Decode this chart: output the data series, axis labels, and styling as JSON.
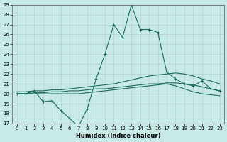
{
  "xlabel": "Humidex (Indice chaleur)",
  "x": [
    0,
    1,
    2,
    3,
    4,
    5,
    6,
    7,
    8,
    9,
    10,
    11,
    12,
    13,
    14,
    15,
    16,
    17,
    18,
    19,
    20,
    21,
    22,
    23
  ],
  "line1": [
    20.0,
    20.0,
    20.3,
    19.2,
    19.3,
    18.3,
    17.5,
    16.7,
    18.5,
    21.5,
    24.0,
    27.0,
    25.7,
    29.0,
    26.5,
    26.5,
    26.2,
    22.2,
    21.5,
    21.0,
    20.8,
    21.3,
    20.5,
    20.3
  ],
  "line2": [
    20.2,
    20.2,
    20.3,
    20.3,
    20.4,
    20.4,
    20.5,
    20.6,
    20.7,
    20.8,
    20.9,
    21.0,
    21.2,
    21.4,
    21.6,
    21.8,
    21.9,
    22.0,
    22.1,
    22.0,
    21.8,
    21.5,
    21.3,
    21.0
  ],
  "line3": [
    20.0,
    20.0,
    20.1,
    20.1,
    20.2,
    20.2,
    20.3,
    20.3,
    20.4,
    20.5,
    20.5,
    20.6,
    20.7,
    20.8,
    20.9,
    21.0,
    21.0,
    21.1,
    21.1,
    21.0,
    20.9,
    20.7,
    20.5,
    20.3
  ],
  "line4": [
    20.0,
    20.0,
    20.0,
    20.0,
    20.0,
    20.0,
    20.0,
    20.0,
    20.1,
    20.2,
    20.3,
    20.4,
    20.5,
    20.6,
    20.7,
    20.8,
    20.9,
    21.0,
    20.8,
    20.5,
    20.2,
    20.0,
    19.9,
    19.8
  ],
  "bg_color": "#c8eae6",
  "grid_color": "#b0c8c4",
  "line_color": "#1a6b5a",
  "ylim": [
    17,
    29
  ],
  "yticks": [
    17,
    18,
    19,
    20,
    21,
    22,
    23,
    24,
    25,
    26,
    27,
    28,
    29
  ],
  "xticks": [
    0,
    1,
    2,
    3,
    4,
    5,
    6,
    7,
    8,
    9,
    10,
    11,
    12,
    13,
    14,
    15,
    16,
    17,
    18,
    19,
    20,
    21,
    22,
    23
  ]
}
